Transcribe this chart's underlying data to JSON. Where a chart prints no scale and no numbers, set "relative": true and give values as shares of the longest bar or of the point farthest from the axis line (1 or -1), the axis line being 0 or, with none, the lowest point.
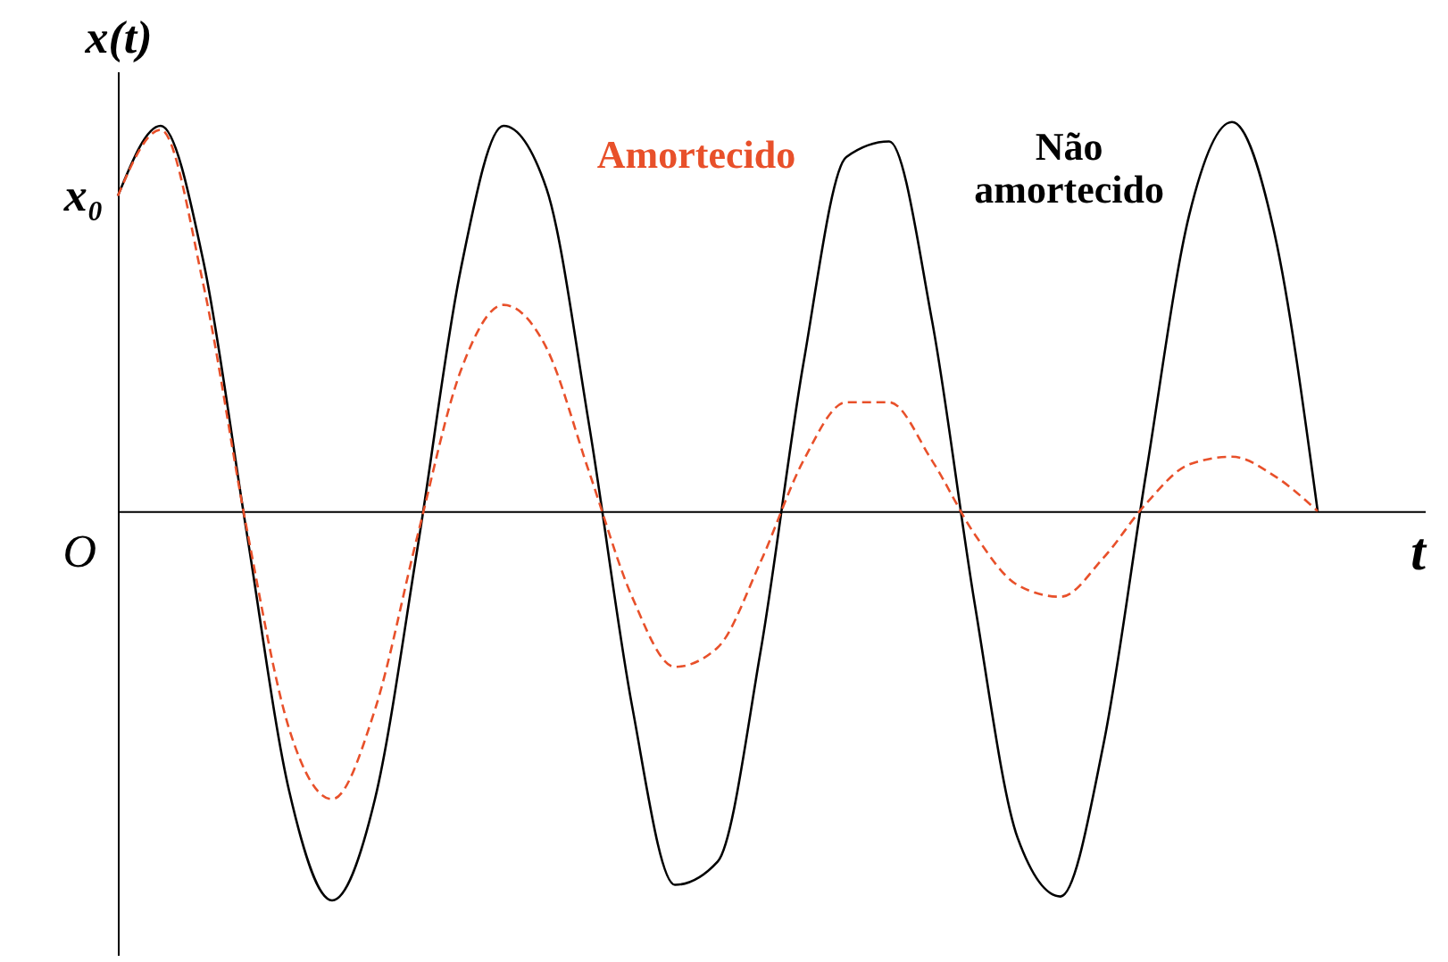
{
  "chart_data": {
    "type": "line",
    "relative": true,
    "xlabel": "t",
    "ylabel": "x(t)",
    "marker": "none",
    "categories": [
      null,
      null,
      null,
      null,
      null,
      null,
      null,
      null,
      null,
      null,
      null,
      null,
      null,
      null,
      null,
      null,
      null,
      null,
      null,
      null,
      null,
      null,
      null,
      null,
      null,
      null,
      null,
      null,
      null
    ],
    "series": [
      {
        "name": "Não amortecido",
        "color": "#000000",
        "line_style": "solid",
        "values": [
          0.81,
          0.99,
          0.64,
          -0.05,
          -0.72,
          -1.0,
          -0.74,
          -0.09,
          0.62,
          0.99,
          0.83,
          0.22,
          -0.5,
          -0.96,
          -0.9,
          -0.36,
          0.38,
          0.91,
          0.95,
          0.49,
          -0.24,
          -0.84,
          -0.99,
          -0.6,
          0.1,
          0.76,
          1.0,
          0.71,
          0
        ]
      },
      {
        "name": "Amortecido",
        "color": "#e8502a",
        "line_style": "dashed",
        "values": [
          0.81,
          0.98,
          0.58,
          -0.04,
          -0.56,
          -0.74,
          -0.51,
          -0.06,
          0.36,
          0.53,
          0.42,
          0.1,
          -0.22,
          -0.4,
          -0.35,
          -0.13,
          0.13,
          0.28,
          0.28,
          0.13,
          -0.06,
          -0.19,
          -0.22,
          -0.12,
          0.02,
          0.12,
          0.14,
          0.09,
          0
        ]
      }
    ],
    "annotations": [
      "x₀",
      "O"
    ]
  }
}
